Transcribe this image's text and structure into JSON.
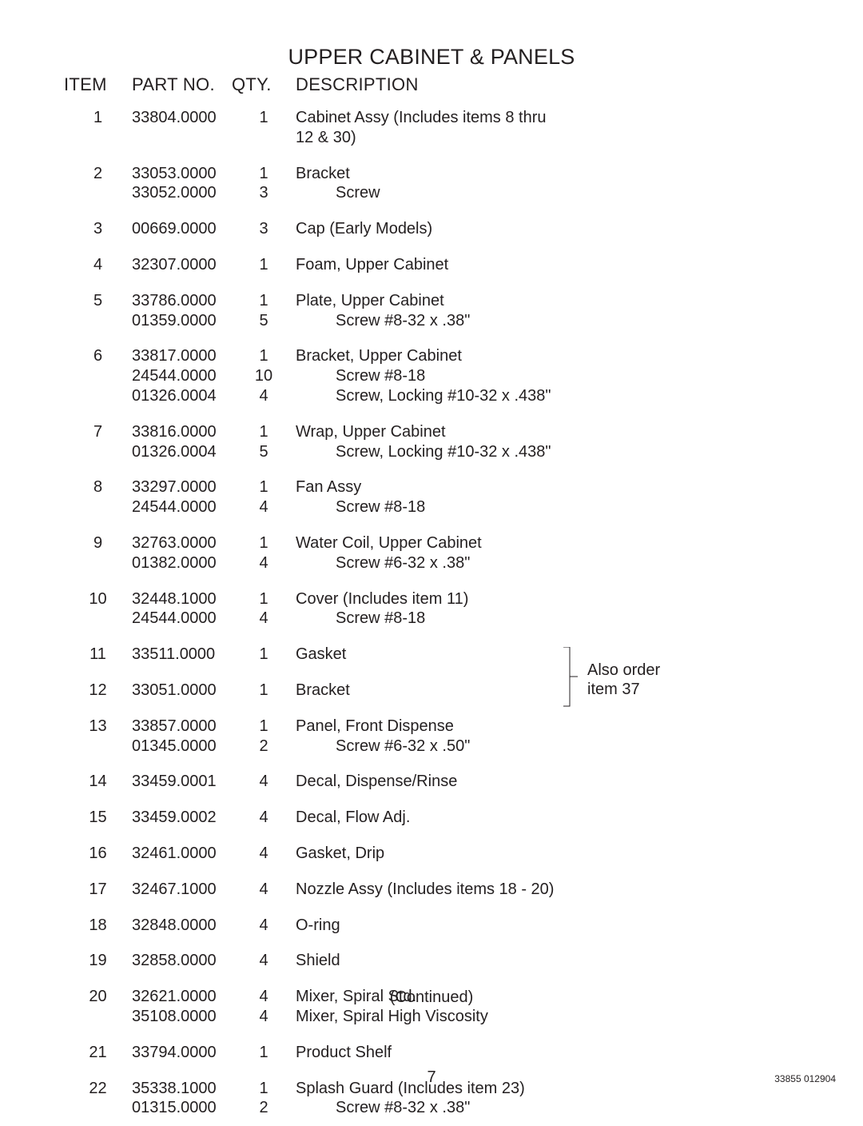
{
  "title": "UPPER CABINET & PANELS",
  "headers": {
    "item": "ITEM",
    "part": "PART NO.",
    "qty": "QTY.",
    "desc": "DESCRIPTION"
  },
  "rows": [
    {
      "item": "1",
      "lines": [
        {
          "part": "33804.0000",
          "qty": "1",
          "desc": "Cabinet Assy (Includes items 8 thru 12 & 30)",
          "indent": false
        }
      ]
    },
    {
      "item": "2",
      "lines": [
        {
          "part": "33053.0000",
          "qty": "1",
          "desc": "Bracket",
          "indent": false
        },
        {
          "part": "33052.0000",
          "qty": "3",
          "desc": "Screw",
          "indent": true
        }
      ]
    },
    {
      "item": "3",
      "lines": [
        {
          "part": "00669.0000",
          "qty": "3",
          "desc": "Cap (Early Models)",
          "indent": false
        }
      ]
    },
    {
      "item": "4",
      "lines": [
        {
          "part": "32307.0000",
          "qty": "1",
          "desc": "Foam, Upper Cabinet",
          "indent": false
        }
      ]
    },
    {
      "item": "5",
      "lines": [
        {
          "part": "33786.0000",
          "qty": "1",
          "desc": "Plate, Upper Cabinet",
          "indent": false
        },
        {
          "part": "01359.0000",
          "qty": "5",
          "desc": "Screw #8-32 x .38\"",
          "indent": true
        }
      ]
    },
    {
      "item": "6",
      "lines": [
        {
          "part": "33817.0000",
          "qty": "1",
          "desc": "Bracket, Upper Cabinet",
          "indent": false
        },
        {
          "part": "24544.0000",
          "qty": "10",
          "desc": "Screw #8-18",
          "indent": true
        },
        {
          "part": "01326.0004",
          "qty": "4",
          "desc": "Screw, Locking #10-32 x .438\"",
          "indent": true
        }
      ]
    },
    {
      "item": "7",
      "lines": [
        {
          "part": "33816.0000",
          "qty": "1",
          "desc": "Wrap, Upper Cabinet",
          "indent": false
        },
        {
          "part": "01326.0004",
          "qty": "5",
          "desc": "Screw, Locking #10-32 x .438\"",
          "indent": true
        }
      ]
    },
    {
      "item": "8",
      "lines": [
        {
          "part": "33297.0000",
          "qty": "1",
          "desc": "Fan Assy",
          "indent": false
        },
        {
          "part": "24544.0000",
          "qty": "4",
          "desc": "Screw #8-18",
          "indent": true
        }
      ]
    },
    {
      "item": "9",
      "lines": [
        {
          "part": "32763.0000",
          "qty": "1",
          "desc": "Water Coil, Upper Cabinet",
          "indent": false
        },
        {
          "part": "01382.0000",
          "qty": "4",
          "desc": "Screw #6-32 x .38\"",
          "indent": true
        }
      ]
    },
    {
      "item": "10",
      "lines": [
        {
          "part": "32448.1000",
          "qty": "1",
          "desc": "Cover (Includes item 11)",
          "indent": false
        },
        {
          "part": "24544.0000",
          "qty": "4",
          "desc": "Screw #8-18",
          "indent": true
        }
      ]
    },
    {
      "item": "11",
      "lines": [
        {
          "part": "33511.0000",
          "qty": "1",
          "desc": "Gasket",
          "indent": false
        }
      ]
    },
    {
      "item": "12",
      "lines": [
        {
          "part": "33051.0000",
          "qty": "1",
          "desc": "Bracket",
          "indent": false
        }
      ]
    },
    {
      "item": "13",
      "lines": [
        {
          "part": "33857.0000",
          "qty": "1",
          "desc": "Panel, Front Dispense",
          "indent": false
        },
        {
          "part": "01345.0000",
          "qty": "2",
          "desc": "Screw #6-32 x .50\"",
          "indent": true
        }
      ]
    },
    {
      "item": "14",
      "lines": [
        {
          "part": "33459.0001",
          "qty": "4",
          "desc": "Decal, Dispense/Rinse",
          "indent": false
        }
      ]
    },
    {
      "item": "15",
      "lines": [
        {
          "part": "33459.0002",
          "qty": "4",
          "desc": "Decal, Flow Adj.",
          "indent": false
        }
      ]
    },
    {
      "item": "16",
      "lines": [
        {
          "part": "32461.0000",
          "qty": "4",
          "desc": "Gasket, Drip",
          "indent": false
        }
      ]
    },
    {
      "item": "17",
      "lines": [
        {
          "part": "32467.1000",
          "qty": "4",
          "desc": "Nozzle Assy (Includes items 18 - 20)",
          "indent": false
        }
      ]
    },
    {
      "item": "18",
      "lines": [
        {
          "part": "32848.0000",
          "qty": "4",
          "desc": "O-ring",
          "indent": false
        }
      ]
    },
    {
      "item": "19",
      "lines": [
        {
          "part": "32858.0000",
          "qty": "4",
          "desc": "Shield",
          "indent": false
        }
      ]
    },
    {
      "item": "20",
      "lines": [
        {
          "part": "32621.0000",
          "qty": "4",
          "desc": "Mixer, Spiral Std.",
          "indent": false
        },
        {
          "part": "35108.0000",
          "qty": "4",
          "desc": "Mixer, Spiral High Viscosity",
          "indent": false
        }
      ]
    },
    {
      "item": "21",
      "lines": [
        {
          "part": "33794.0000",
          "qty": "1",
          "desc": "Product Shelf",
          "indent": false
        }
      ]
    },
    {
      "item": "22",
      "lines": [
        {
          "part": "35338.1000",
          "qty": "1",
          "desc": "Splash Guard (Includes item 23)",
          "indent": false
        },
        {
          "part": "01315.0000",
          "qty": "2",
          "desc": "Screw #8-32 x .38\"",
          "indent": true
        }
      ]
    }
  ],
  "annotation": {
    "line1": "Also order",
    "line2": "item 37"
  },
  "continued": "(Continued)",
  "pageNumber": "7",
  "docId": "33855 012904",
  "style": {
    "pageWidth": 1080,
    "pageHeight": 1397,
    "textColor": "#231f20",
    "background": "#ffffff",
    "titleFontSize": 27,
    "headerFontSize": 22,
    "bodyFontSize": 20,
    "docIdFontSize": 12,
    "cols": {
      "item": 85,
      "part": 125,
      "qty": 80,
      "desc": 340
    },
    "indentPx": 50,
    "bracketStroke": "#231f20",
    "bracketStrokeWidth": 1
  }
}
